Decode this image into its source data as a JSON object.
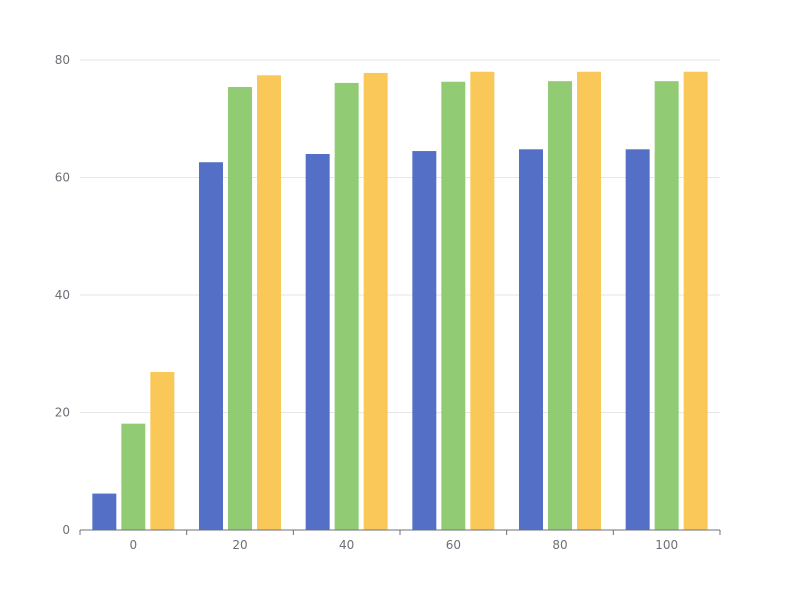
{
  "chart_data": {
    "type": "bar",
    "categories": [
      "0",
      "20",
      "40",
      "60",
      "80",
      "100"
    ],
    "series": [
      {
        "color": "#5470c6",
        "values": [
          6.2,
          62.6,
          64.0,
          64.5,
          64.8,
          64.8
        ]
      },
      {
        "color": "#91cc75",
        "values": [
          18.1,
          75.4,
          76.1,
          76.3,
          76.4,
          76.4
        ]
      },
      {
        "color": "#fac858",
        "values": [
          26.9,
          77.4,
          77.8,
          78.0,
          78.0,
          78.0
        ]
      }
    ],
    "title": "",
    "xlabel": "",
    "ylabel": "",
    "ylim": [
      0,
      80
    ],
    "yticks": [
      "0",
      "20",
      "40",
      "60",
      "80"
    ],
    "grid": true,
    "legend": "none"
  }
}
